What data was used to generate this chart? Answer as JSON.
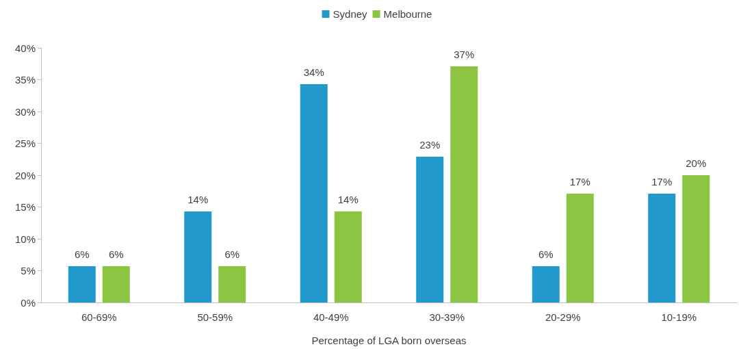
{
  "chart_data": {
    "type": "bar",
    "xlabel": "Percentage of LGA born overseas",
    "categories": [
      "60-69%",
      "50-59%",
      "40-49%",
      "30-39%",
      "20-29%",
      "10-19%"
    ],
    "series": [
      {
        "name": "Sydney",
        "color": "#2199cb",
        "values": [
          5.7,
          14.3,
          34.3,
          22.9,
          5.7,
          17.1
        ],
        "value_labels": [
          "6%",
          "14%",
          "34%",
          "23%",
          "6%",
          "17%"
        ]
      },
      {
        "name": "Melbourne",
        "color": "#8bc541",
        "values": [
          5.7,
          5.7,
          14.3,
          37.1,
          17.1,
          20
        ],
        "value_labels": [
          "6%",
          "6%",
          "14%",
          "37%",
          "17%",
          "20%"
        ]
      }
    ],
    "ylim": [
      0,
      40
    ],
    "yticks": [
      {
        "value": 0,
        "label": "0%"
      },
      {
        "value": 5,
        "label": "5%"
      },
      {
        "value": 10,
        "label": "10%"
      },
      {
        "value": 15,
        "label": "15%"
      },
      {
        "value": 20,
        "label": "20%"
      },
      {
        "value": 25,
        "label": "25%"
      },
      {
        "value": 30,
        "label": "30%"
      },
      {
        "value": 35,
        "label": "35%"
      },
      {
        "value": 40,
        "label": "40%"
      }
    ],
    "grid": false,
    "legend": "top"
  }
}
